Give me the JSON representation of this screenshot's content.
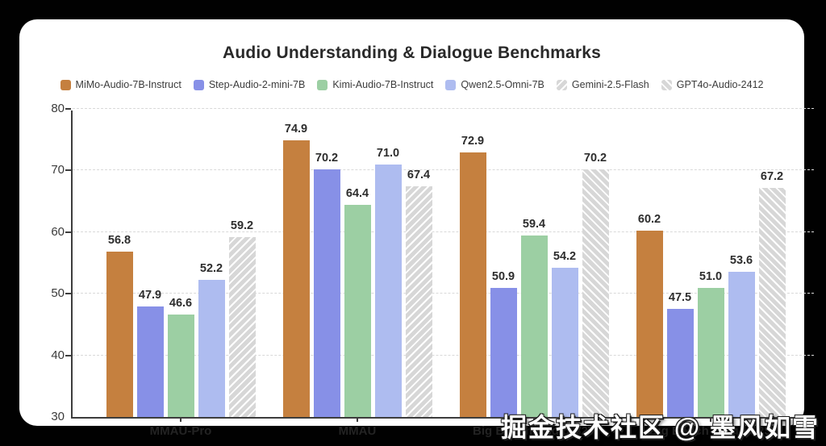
{
  "title": "Audio Understanding & Dialogue Benchmarks",
  "watermark": "掘金技术社区 @ 墨风如雪",
  "chart_data": {
    "type": "bar",
    "title": "Audio Understanding & Dialogue Benchmarks",
    "categories": [
      "MMAU-Pro",
      "MMAU",
      "Big Bench Audio S2T",
      "Big Bench Audio S2S"
    ],
    "series": [
      {
        "name": "MiMo-Audio-7B-Instruct",
        "color": "#c5803f",
        "style": "solid-0",
        "values": [
          56.8,
          74.9,
          72.9,
          60.2
        ]
      },
      {
        "name": "Step-Audio-2-mini-7B",
        "color": "#8790e7",
        "style": "solid-1",
        "values": [
          47.9,
          70.2,
          50.9,
          47.5
        ]
      },
      {
        "name": "Kimi-Audio-7B-Instruct",
        "color": "#9ccfa3",
        "style": "solid-2",
        "values": [
          46.6,
          64.4,
          59.4,
          51.0
        ]
      },
      {
        "name": "Qwen2.5-Omni-7B",
        "color": "#aebcf0",
        "style": "solid-3",
        "values": [
          52.2,
          71.0,
          54.2,
          53.6
        ]
      },
      {
        "name": "Gemini-2.5-Flash",
        "color": "#d7d7d7",
        "style": "hatch-forward",
        "values": [
          59.2,
          67.4,
          null,
          null
        ]
      },
      {
        "name": "GPT4o-Audio-2412",
        "color": "#d7d7d7",
        "style": "hatch-back",
        "values": [
          null,
          null,
          70.2,
          67.2
        ]
      }
    ],
    "ylim": [
      30,
      80
    ],
    "yticks": [
      30,
      40,
      50,
      60,
      70,
      80
    ],
    "grid": "horizontal-dashed",
    "legend_position": "top",
    "value_label_format": "one-decimal",
    "axis_color": "#3d3d3d",
    "grid_color": "#d9d9d9",
    "background": "#ffffff",
    "page_background": "#010101"
  }
}
